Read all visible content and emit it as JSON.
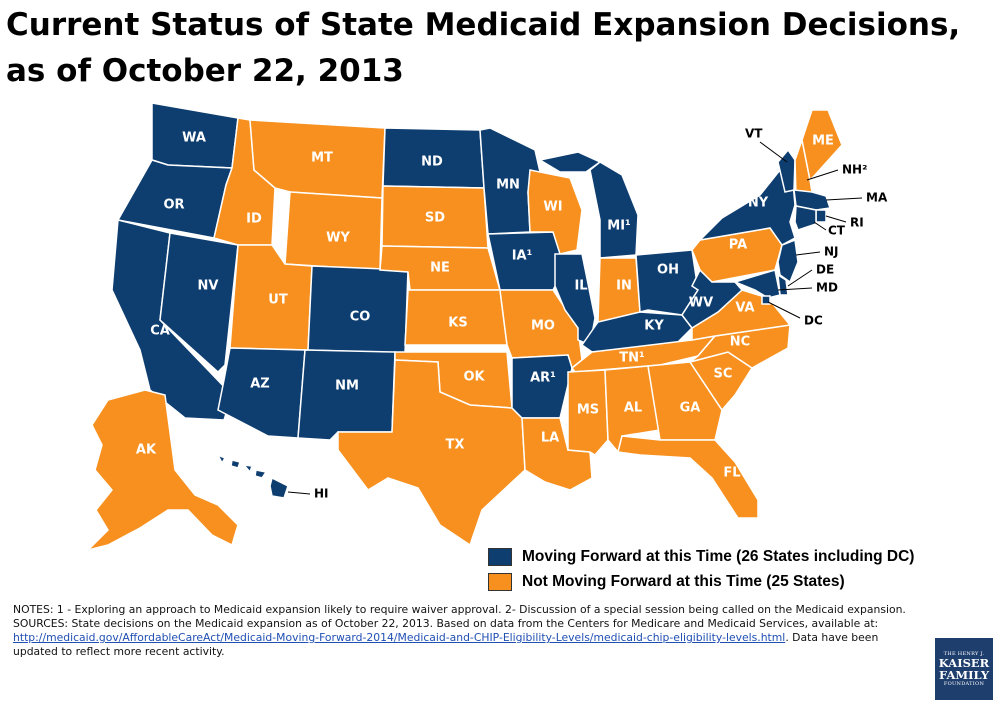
{
  "title": "Current Status of State Medicaid Expansion Decisions, as of October 22, 2013",
  "colors": {
    "moving_forward": "#0e3e70",
    "not_moving_forward": "#f7901e"
  },
  "legend": {
    "moving_forward": "Moving Forward at this Time (26 States including DC)",
    "not_moving_forward": "Not Moving Forward at this Time (25 States)"
  },
  "states": {
    "WA": {
      "label": "WA",
      "status": "moving_forward"
    },
    "OR": {
      "label": "OR",
      "status": "moving_forward"
    },
    "CA": {
      "label": "CA",
      "status": "moving_forward"
    },
    "NV": {
      "label": "NV",
      "status": "moving_forward"
    },
    "ID": {
      "label": "ID",
      "status": "not_moving_forward"
    },
    "MT": {
      "label": "MT",
      "status": "not_moving_forward"
    },
    "WY": {
      "label": "WY",
      "status": "not_moving_forward"
    },
    "UT": {
      "label": "UT",
      "status": "not_moving_forward"
    },
    "CO": {
      "label": "CO",
      "status": "moving_forward"
    },
    "AZ": {
      "label": "AZ",
      "status": "moving_forward"
    },
    "NM": {
      "label": "NM",
      "status": "moving_forward"
    },
    "ND": {
      "label": "ND",
      "status": "moving_forward"
    },
    "SD": {
      "label": "SD",
      "status": "not_moving_forward"
    },
    "NE": {
      "label": "NE",
      "status": "not_moving_forward"
    },
    "KS": {
      "label": "KS",
      "status": "not_moving_forward"
    },
    "OK": {
      "label": "OK",
      "status": "not_moving_forward"
    },
    "TX": {
      "label": "TX",
      "status": "not_moving_forward"
    },
    "MN": {
      "label": "MN",
      "status": "moving_forward"
    },
    "IA": {
      "label": "IA¹",
      "status": "moving_forward"
    },
    "MO": {
      "label": "MO",
      "status": "not_moving_forward"
    },
    "AR": {
      "label": "AR¹",
      "status": "moving_forward"
    },
    "LA": {
      "label": "LA",
      "status": "not_moving_forward"
    },
    "WI": {
      "label": "WI",
      "status": "not_moving_forward"
    },
    "IL": {
      "label": "IL",
      "status": "moving_forward"
    },
    "MI": {
      "label": "MI¹",
      "status": "moving_forward"
    },
    "IN": {
      "label": "IN",
      "status": "not_moving_forward"
    },
    "OH": {
      "label": "OH",
      "status": "moving_forward"
    },
    "KY": {
      "label": "KY",
      "status": "moving_forward"
    },
    "TN": {
      "label": "TN¹",
      "status": "not_moving_forward"
    },
    "MS": {
      "label": "MS",
      "status": "not_moving_forward"
    },
    "AL": {
      "label": "AL",
      "status": "not_moving_forward"
    },
    "GA": {
      "label": "GA",
      "status": "not_moving_forward"
    },
    "FL": {
      "label": "FL",
      "status": "not_moving_forward"
    },
    "SC": {
      "label": "SC",
      "status": "not_moving_forward"
    },
    "NC": {
      "label": "NC",
      "status": "not_moving_forward"
    },
    "VA": {
      "label": "VA",
      "status": "not_moving_forward"
    },
    "WV": {
      "label": "WV",
      "status": "moving_forward"
    },
    "PA": {
      "label": "PA",
      "status": "not_moving_forward"
    },
    "NY": {
      "label": "NY",
      "status": "moving_forward"
    },
    "VT": {
      "label": "VT",
      "status": "moving_forward"
    },
    "NH": {
      "label": "NH²",
      "status": "not_moving_forward"
    },
    "ME": {
      "label": "ME",
      "status": "not_moving_forward"
    },
    "MA": {
      "label": "MA",
      "status": "moving_forward"
    },
    "RI": {
      "label": "RI",
      "status": "moving_forward"
    },
    "CT": {
      "label": "CT",
      "status": "moving_forward"
    },
    "NJ": {
      "label": "NJ",
      "status": "moving_forward"
    },
    "DE": {
      "label": "DE",
      "status": "moving_forward"
    },
    "MD": {
      "label": "MD",
      "status": "moving_forward"
    },
    "DC": {
      "label": "DC",
      "status": "moving_forward"
    },
    "AK": {
      "label": "AK",
      "status": "not_moving_forward"
    },
    "HI": {
      "label": "HI",
      "status": "moving_forward"
    }
  },
  "notes": {
    "line1": "NOTES: 1 - Exploring an approach to Medicaid expansion likely to require waiver approval. 2- Discussion of a special session being called on the Medicaid expansion.",
    "sources_prefix": "SOURCES: State decisions on the Medicaid expansion as of October 22, 2013. Based on data from the Centers for Medicare and Medicaid Services, available at: ",
    "link": "http://medicaid.gov/AffordableCareAct/Medicaid-Moving-Forward-2014/Medicaid-and-CHIP-Eligibility-Levels/medicaid-chip-eligibility-levels.html",
    "sources_suffix": ". Data have been updated to reflect more recent activity."
  },
  "logo": {
    "line1": "THE HENRY J.",
    "line2": "KAISER",
    "line3": "FAMILY",
    "line4": "FOUNDATION"
  }
}
